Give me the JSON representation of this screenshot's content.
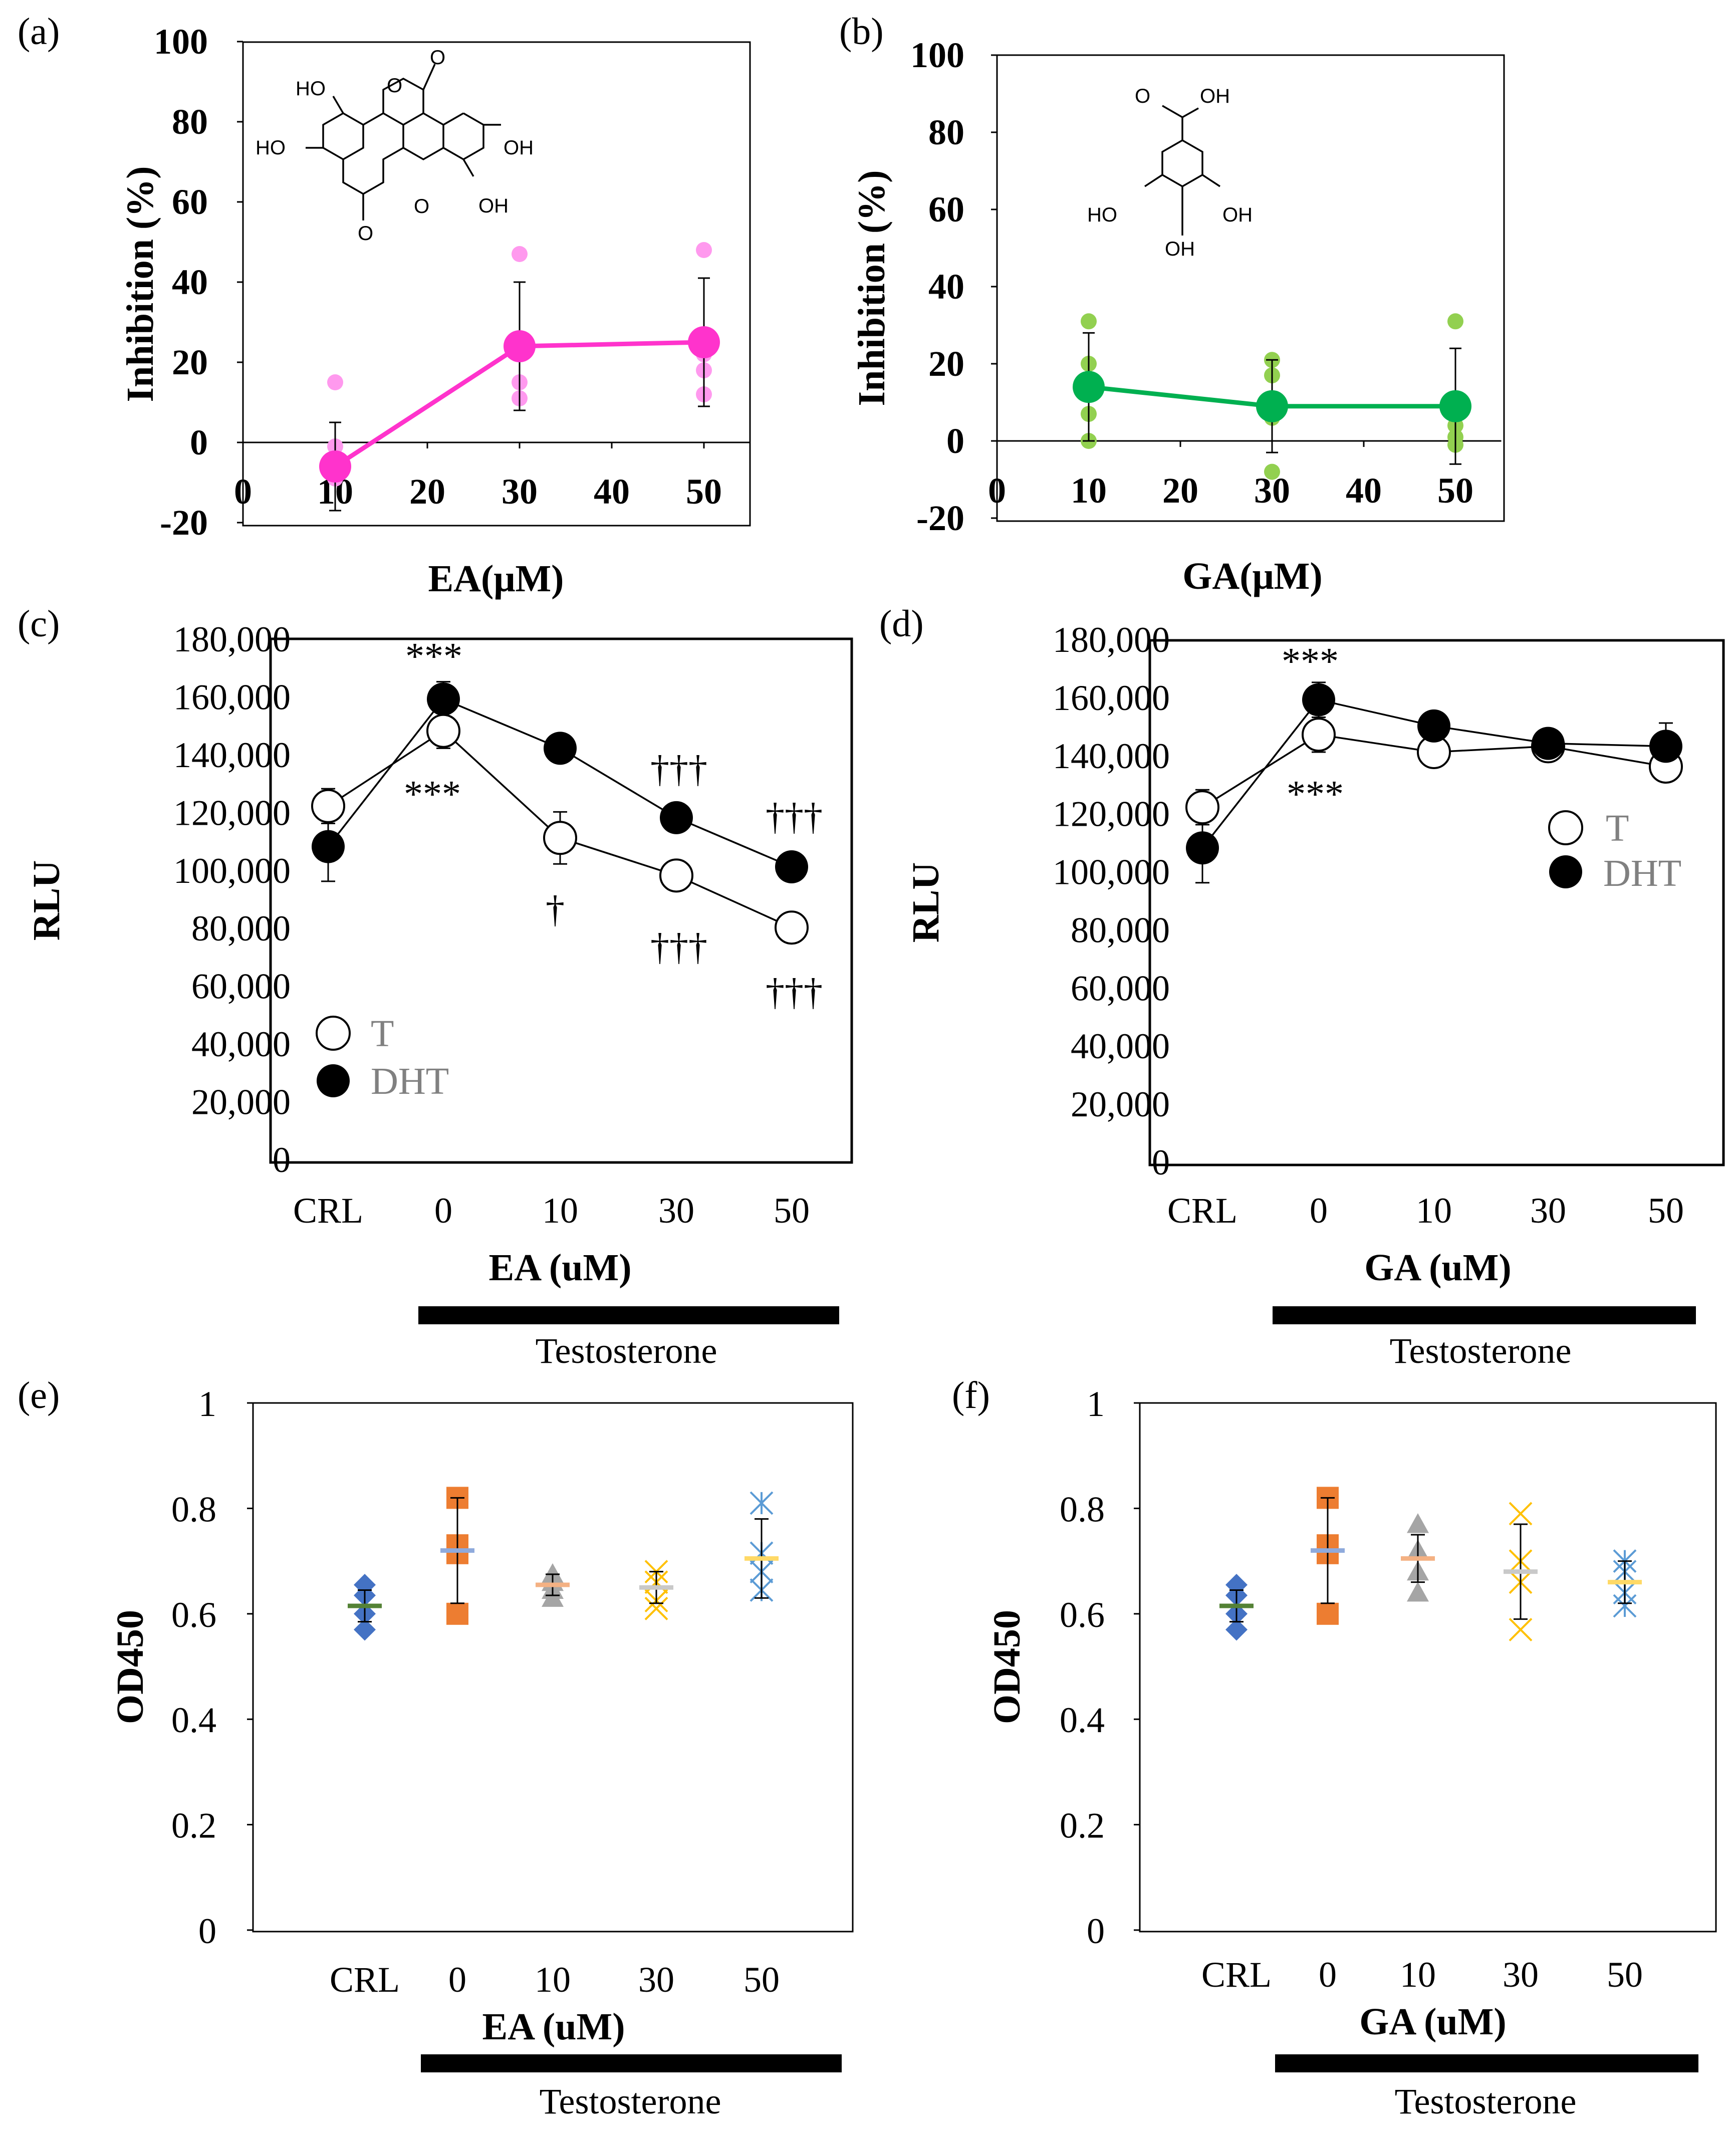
{
  "chart_data": [
    {
      "panel": "(a)",
      "type": "scatter",
      "xlabel": "EA(μM)",
      "ylabel": "Inhibition (%)",
      "xlim": [
        0,
        55
      ],
      "ylim": [
        -20,
        100
      ],
      "xticks": [
        0,
        10,
        20,
        30,
        40,
        50
      ],
      "yticks": [
        -20,
        0,
        20,
        40,
        60,
        80,
        100
      ],
      "mean_color": "#ff33cc",
      "point_color": "#ff99ee",
      "mean": {
        "x": [
          10,
          30,
          50
        ],
        "y": [
          -6,
          24,
          25
        ],
        "err": [
          11,
          16,
          16
        ]
      },
      "points": {
        "x": [
          10,
          10,
          10,
          30,
          30,
          30,
          30,
          50,
          50,
          50,
          50
        ],
        "y": [
          15,
          -1,
          -9,
          47,
          22,
          15,
          11,
          48,
          22,
          18,
          12
        ]
      },
      "structure_labels": [
        "HO",
        "HO",
        "OH",
        "OH"
      ]
    },
    {
      "panel": "(b)",
      "type": "scatter",
      "xlabel": "GA(μM)",
      "ylabel": "Inhibition (%)",
      "xlim": [
        0,
        55
      ],
      "ylim": [
        -20,
        100
      ],
      "xticks": [
        0,
        10,
        20,
        30,
        40,
        50
      ],
      "yticks": [
        -20,
        0,
        20,
        40,
        60,
        80,
        100
      ],
      "mean_color": "#00b050",
      "point_color": "#92d050",
      "mean": {
        "x": [
          10,
          30,
          50
        ],
        "y": [
          14,
          9,
          9
        ],
        "err": [
          14,
          12,
          15
        ]
      },
      "points": {
        "x": [
          10,
          10,
          10,
          10,
          30,
          30,
          30,
          30,
          50,
          50,
          50,
          50
        ],
        "y": [
          31,
          20,
          7,
          0,
          21,
          17,
          6,
          -8,
          31,
          4,
          1,
          -1
        ]
      },
      "structure_labels": [
        "OH",
        "HO",
        "OH",
        "OH"
      ]
    },
    {
      "panel": "(c)",
      "type": "line",
      "xlabel": "EA (uM)",
      "ylabel": "RLU",
      "categories": [
        "CRL",
        "0",
        "10",
        "30",
        "50"
      ],
      "ylim": [
        0,
        180000
      ],
      "yticks": [
        "0",
        "20,000",
        "40,000",
        "60,000",
        "80,000",
        "100,000",
        "120,000",
        "140,000",
        "160,000",
        "180,000"
      ],
      "series": [
        {
          "name": "T",
          "values": [
            122000,
            148000,
            111000,
            98000,
            80000
          ],
          "err": [
            6000,
            6000,
            9000,
            0,
            0
          ]
        },
        {
          "name": "DHT",
          "values": [
            108000,
            159000,
            142000,
            118000,
            101000
          ],
          "err": [
            12000,
            6000,
            0,
            0,
            0
          ]
        }
      ],
      "significance": [
        "***",
        "***",
        "†",
        "†††",
        "†††",
        "†††",
        "†††"
      ],
      "bar_label": "Testosterone"
    },
    {
      "panel": "(d)",
      "type": "line",
      "xlabel": "GA (uM)",
      "ylabel": "RLU",
      "categories": [
        "CRL",
        "0",
        "10",
        "30",
        "50"
      ],
      "ylim": [
        0,
        180000
      ],
      "yticks": [
        "0",
        "20,000",
        "40,000",
        "60,000",
        "80,000",
        "100,000",
        "120,000",
        "140,000",
        "160,000",
        "180,000"
      ],
      "series": [
        {
          "name": "T",
          "values": [
            122000,
            147000,
            141000,
            143000,
            136000
          ],
          "err": [
            6000,
            6000,
            0,
            0,
            0
          ]
        },
        {
          "name": "DHT",
          "values": [
            108000,
            159000,
            150000,
            144000,
            143000
          ],
          "err": [
            12000,
            6000,
            0,
            0,
            8000
          ]
        }
      ],
      "significance": [
        "***",
        "***"
      ],
      "bar_label": "Testosterone"
    },
    {
      "panel": "(e)",
      "type": "scatter",
      "xlabel": "EA (uM)",
      "ylabel": "OD450",
      "categories": [
        "CRL",
        "0",
        "10",
        "30",
        "50"
      ],
      "ylim": [
        0,
        1
      ],
      "yticks": [
        "0",
        "0.2",
        "0.4",
        "0.6",
        "0.8",
        "1"
      ],
      "groups": [
        {
          "category": "CRL",
          "marker": "diamond",
          "color": "#4472c4",
          "mean_color": "#548235",
          "mean": 0.615,
          "err": 0.03,
          "points": [
            0.655,
            0.635,
            0.6,
            0.57
          ]
        },
        {
          "category": "0",
          "marker": "square",
          "color": "#ed7d31",
          "mean_color": "#8faadc",
          "mean": 0.72,
          "err": 0.1,
          "points": [
            0.82,
            0.73,
            0.715,
            0.6
          ]
        },
        {
          "category": "10",
          "marker": "triangle",
          "color": "#a5a5a5",
          "mean_color": "#f4b183",
          "mean": 0.655,
          "err": 0.02,
          "points": [
            0.675,
            0.66,
            0.645,
            0.63
          ]
        },
        {
          "category": "30",
          "marker": "x",
          "color": "#ffc000",
          "mean_color": "#c9c9c9",
          "mean": 0.65,
          "err": 0.03,
          "points": [
            0.68,
            0.66,
            0.625,
            0.61
          ]
        },
        {
          "category": "50",
          "marker": "asterisk",
          "color": "#5b9bd5",
          "mean_color": "#ffd966",
          "mean": 0.705,
          "err": 0.075,
          "points": [
            0.81,
            0.715,
            0.68,
            0.645
          ]
        }
      ],
      "bar_label": "Testosterone"
    },
    {
      "panel": "(f)",
      "type": "scatter",
      "xlabel": "GA (uM)",
      "ylabel": "OD450",
      "categories": [
        "CRL",
        "0",
        "10",
        "30",
        "50"
      ],
      "ylim": [
        0,
        1
      ],
      "yticks": [
        "0",
        "0.2",
        "0.4",
        "0.6",
        "0.8",
        "1"
      ],
      "groups": [
        {
          "category": "CRL",
          "marker": "diamond",
          "color": "#4472c4",
          "mean_color": "#548235",
          "mean": 0.615,
          "err": 0.03,
          "points": [
            0.655,
            0.635,
            0.6,
            0.57
          ]
        },
        {
          "category": "0",
          "marker": "square",
          "color": "#ed7d31",
          "mean_color": "#8faadc",
          "mean": 0.72,
          "err": 0.1,
          "points": [
            0.82,
            0.73,
            0.715,
            0.6
          ]
        },
        {
          "category": "10",
          "marker": "triangle",
          "color": "#a5a5a5",
          "mean_color": "#f4b183",
          "mean": 0.705,
          "err": 0.045,
          "points": [
            0.77,
            0.72,
            0.68,
            0.64
          ]
        },
        {
          "category": "30",
          "marker": "x",
          "color": "#ffc000",
          "mean_color": "#c9c9c9",
          "mean": 0.68,
          "err": 0.09,
          "points": [
            0.79,
            0.7,
            0.66,
            0.57
          ]
        },
        {
          "category": "50",
          "marker": "asterisk",
          "color": "#5b9bd5",
          "mean_color": "#ffd966",
          "mean": 0.66,
          "err": 0.04,
          "points": [
            0.7,
            0.68,
            0.64,
            0.615
          ]
        }
      ],
      "bar_label": "Testosterone"
    }
  ]
}
